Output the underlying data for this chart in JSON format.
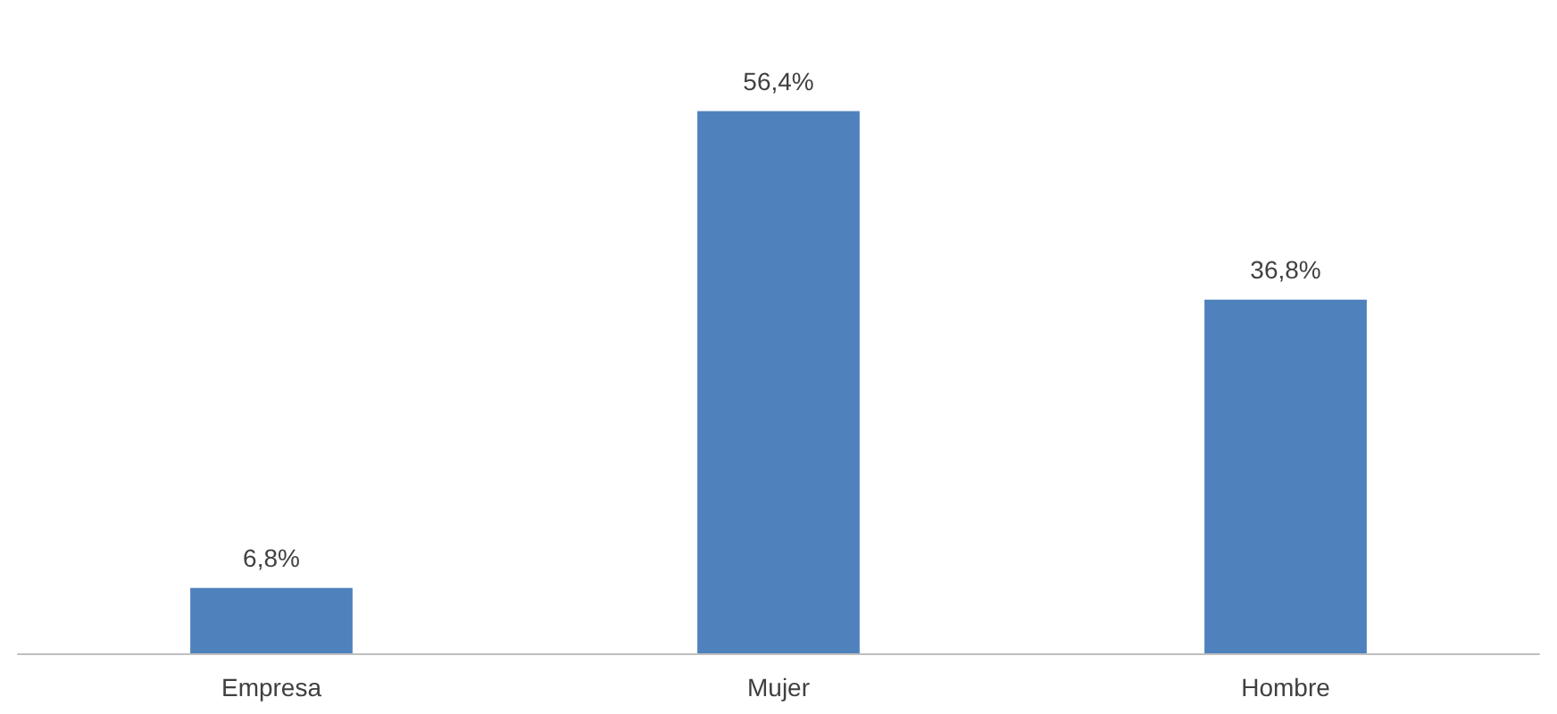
{
  "chart_data": {
    "type": "bar",
    "categories": [
      "Empresa",
      "Mujer",
      "Hombre"
    ],
    "values": [
      6.8,
      56.4,
      36.8
    ],
    "color": "#4f81bd",
    "value_labels": [
      "6,8%",
      "56,4%",
      "36,8%"
    ]
  }
}
